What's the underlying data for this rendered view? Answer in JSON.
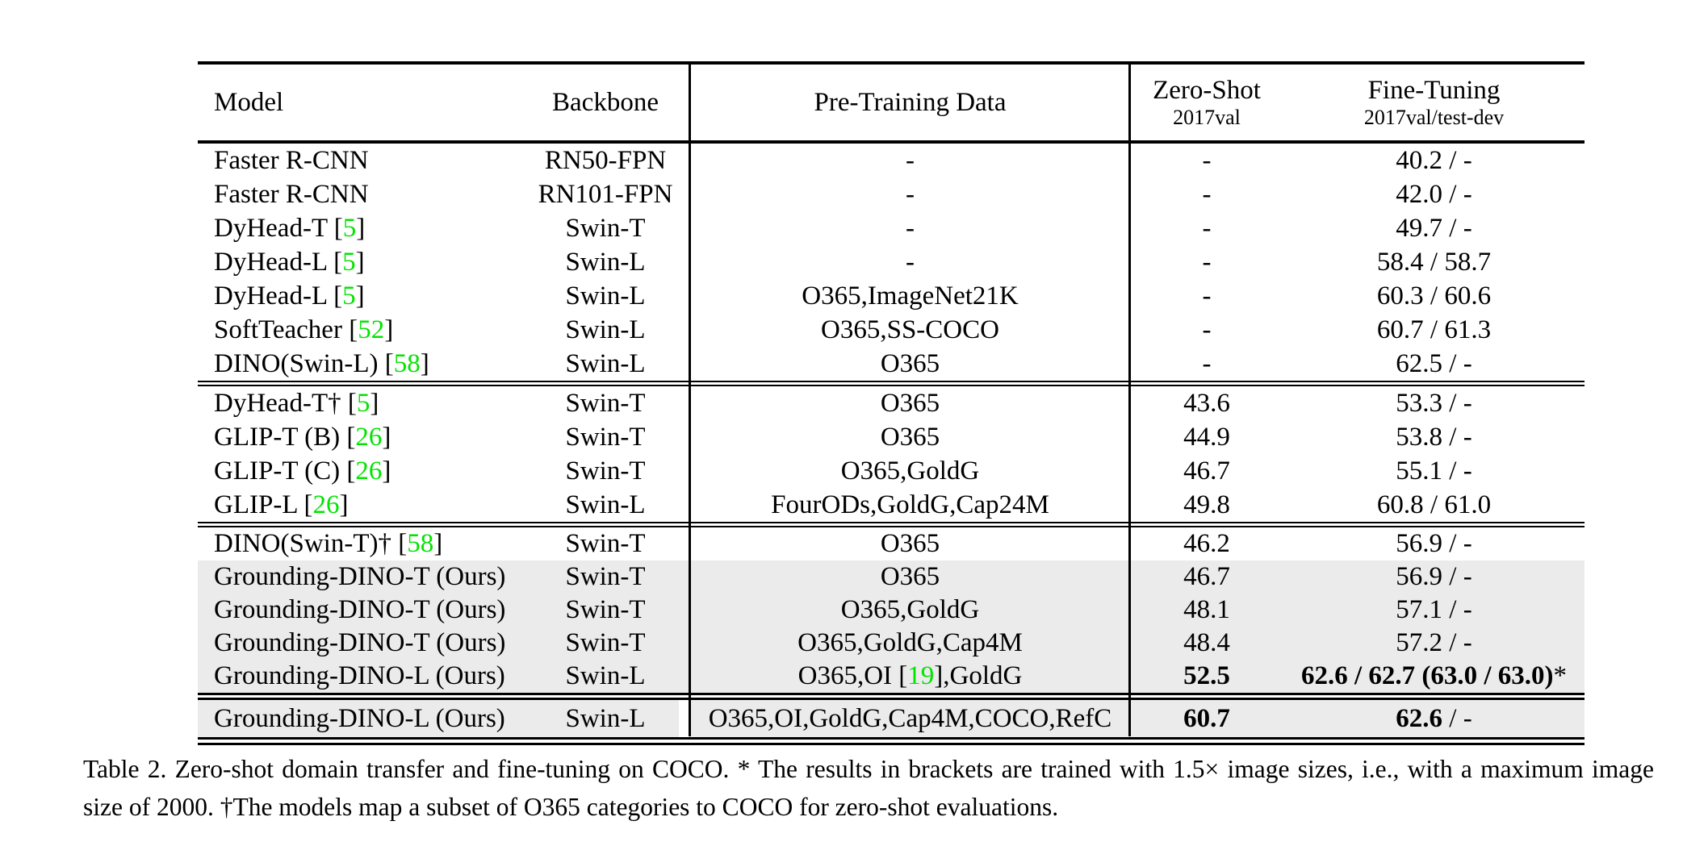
{
  "colors": {
    "citation_green": "#00e400",
    "row_highlight_gray": "#ebebeb",
    "rule_black": "#000000",
    "background": "#ffffff"
  },
  "header": {
    "model": "Model",
    "backbone": "Backbone",
    "pretrain": "Pre-Training Data",
    "zeroshot_title": "Zero-Shot",
    "zeroshot_sub": "2017val",
    "finetune_title": "Fine-Tuning",
    "finetune_sub": "2017val/test-dev"
  },
  "table": {
    "sections": [
      {
        "rows": [
          {
            "model": [
              "Faster R-CNN"
            ],
            "backbone": "RN50-FPN",
            "pretrain": [
              "-"
            ],
            "zeroshot": [
              "-"
            ],
            "finetune": [
              "40.2 / -"
            ],
            "highlight": false
          },
          {
            "model": [
              "Faster R-CNN"
            ],
            "backbone": "RN101-FPN",
            "pretrain": [
              "-"
            ],
            "zeroshot": [
              "-"
            ],
            "finetune": [
              "42.0 / -"
            ],
            "highlight": false
          },
          {
            "model": [
              "DyHead-T [",
              {
                "g": "5"
              },
              "]"
            ],
            "backbone": "Swin-T",
            "pretrain": [
              "-"
            ],
            "zeroshot": [
              "-"
            ],
            "finetune": [
              "49.7 / -"
            ],
            "highlight": false
          },
          {
            "model": [
              "DyHead-L [",
              {
                "g": "5"
              },
              "]"
            ],
            "backbone": "Swin-L",
            "pretrain": [
              "-"
            ],
            "zeroshot": [
              "-"
            ],
            "finetune": [
              "58.4 / 58.7"
            ],
            "highlight": false
          },
          {
            "model": [
              "DyHead-L [",
              {
                "g": "5"
              },
              "]"
            ],
            "backbone": "Swin-L",
            "pretrain": [
              "O365,ImageNet21K"
            ],
            "zeroshot": [
              "-"
            ],
            "finetune": [
              "60.3 / 60.6"
            ],
            "highlight": false
          },
          {
            "model": [
              "SoftTeacher [",
              {
                "g": "52"
              },
              "]"
            ],
            "backbone": "Swin-L",
            "pretrain": [
              "O365,SS-COCO"
            ],
            "zeroshot": [
              "-"
            ],
            "finetune": [
              "60.7 / 61.3"
            ],
            "highlight": false
          },
          {
            "model": [
              "DINO(Swin-L) [",
              {
                "g": "58"
              },
              "]"
            ],
            "backbone": "Swin-L",
            "pretrain": [
              "O365"
            ],
            "zeroshot": [
              "-"
            ],
            "finetune": [
              "62.5 / -"
            ],
            "highlight": false
          }
        ]
      },
      {
        "rows": [
          {
            "model": [
              "DyHead-T† [",
              {
                "g": "5"
              },
              "]"
            ],
            "backbone": "Swin-T",
            "pretrain": [
              "O365"
            ],
            "zeroshot": [
              "43.6"
            ],
            "finetune": [
              "53.3 / -"
            ],
            "highlight": false
          },
          {
            "model": [
              "GLIP-T (B) [",
              {
                "g": "26"
              },
              "]"
            ],
            "backbone": "Swin-T",
            "pretrain": [
              "O365"
            ],
            "zeroshot": [
              "44.9"
            ],
            "finetune": [
              "53.8 / -"
            ],
            "highlight": false
          },
          {
            "model": [
              "GLIP-T (C) [",
              {
                "g": "26"
              },
              "]"
            ],
            "backbone": "Swin-T",
            "pretrain": [
              "O365,GoldG"
            ],
            "zeroshot": [
              "46.7"
            ],
            "finetune": [
              "55.1 / -"
            ],
            "highlight": false
          },
          {
            "model": [
              "GLIP-L [",
              {
                "g": "26"
              },
              "]"
            ],
            "backbone": "Swin-L",
            "pretrain": [
              "FourODs,GoldG,Cap24M"
            ],
            "zeroshot": [
              "49.8"
            ],
            "finetune": [
              "60.8 / 61.0"
            ],
            "highlight": false
          }
        ]
      },
      {
        "rows": [
          {
            "model": [
              "DINO(Swin-T)† [",
              {
                "g": "58"
              },
              "]"
            ],
            "backbone": "Swin-T",
            "pretrain": [
              "O365"
            ],
            "zeroshot": [
              "46.2"
            ],
            "finetune": [
              "56.9 / -"
            ],
            "highlight": false
          },
          {
            "model": [
              "Grounding-DINO-T (Ours)"
            ],
            "backbone": "Swin-T",
            "pretrain": [
              "O365"
            ],
            "zeroshot": [
              "46.7"
            ],
            "finetune": [
              "56.9 / -"
            ],
            "highlight": true
          },
          {
            "model": [
              "Grounding-DINO-T (Ours)"
            ],
            "backbone": "Swin-T",
            "pretrain": [
              "O365,GoldG"
            ],
            "zeroshot": [
              "48.1"
            ],
            "finetune": [
              "57.1 / -"
            ],
            "highlight": true
          },
          {
            "model": [
              "Grounding-DINO-T (Ours)"
            ],
            "backbone": "Swin-T",
            "pretrain": [
              "O365,GoldG,Cap4M"
            ],
            "zeroshot": [
              "48.4"
            ],
            "finetune": [
              "57.2 / -"
            ],
            "highlight": true
          },
          {
            "model": [
              "Grounding-DINO-L (Ours)"
            ],
            "backbone": "Swin-L",
            "pretrain": [
              "O365,OI [",
              {
                "g": "19"
              },
              "],GoldG"
            ],
            "zeroshot": [
              {
                "b": "52.5"
              }
            ],
            "finetune": [
              {
                "b": "62.6 / 62.7 (63.0 / 63.0)"
              },
              "*"
            ],
            "highlight": true
          }
        ]
      },
      {
        "rows": [
          {
            "model": [
              "Grounding-DINO-L (Ours)"
            ],
            "backbone": "Swin-L",
            "pretrain": [
              "O365,OI,GoldG,Cap4M,COCO,RefC"
            ],
            "zeroshot": [
              {
                "b": "60.7"
              }
            ],
            "finetune": [
              {
                "b": "62.6"
              },
              " / -"
            ],
            "highlight": true
          }
        ]
      }
    ]
  },
  "caption": "Table 2. Zero-shot domain transfer and fine-tuning on COCO. * The results in brackets are trained with 1.5× image sizes, i.e., with a maximum image size of 2000. †The models map a subset of O365 categories to COCO for zero-shot evaluations."
}
